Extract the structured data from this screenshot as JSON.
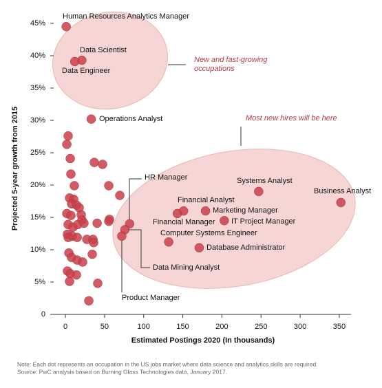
{
  "chart_data": {
    "type": "scatter",
    "x_label": "Estimated Postings 2020 (In thousands)",
    "y_label": "Projected 5-year growth from 2015",
    "annotations": [
      "New and fast-growing",
      "occupations",
      "Most new hires will be here"
    ],
    "notes": [
      "Note: Each dot represents an occupation in the US jobs market where data science and analytics skills are required.",
      "Source: PwC analysis based on Burning Glass Technologies data, January 2017."
    ],
    "color": "#c9404a",
    "xlim": [
      -15,
      365
    ],
    "xticks": [
      0,
      50,
      100,
      150,
      200,
      250,
      300,
      350
    ],
    "ylim": [
      0,
      46
    ],
    "yticks": [
      0,
      {
        "value": 5,
        "label": "5%"
      },
      {
        "value": 10,
        "label": "10%"
      },
      {
        "value": 15,
        "label": "15%"
      },
      {
        "value": 20,
        "label": "20%"
      },
      {
        "value": 25,
        "label": "25%"
      },
      {
        "value": 30,
        "label": "30%"
      },
      {
        "value": 35,
        "label": "35%"
      },
      {
        "value": 40,
        "label": "40%"
      },
      {
        "value": 45,
        "label": "45%"
      }
    ],
    "x": [
      1,
      21,
      12,
      33,
      247,
      352,
      151,
      143,
      179,
      203,
      132,
      171,
      82,
      76,
      72,
      3.5,
      1.8,
      6.2,
      7.0,
      11.4,
      5.3,
      10.6,
      7.9,
      14.1,
      17.6,
      20.2,
      21.1,
      1.8,
      7.0,
      3.5,
      9.7,
      15.8,
      23.7,
      2.6,
      8.8,
      15.0,
      3.5,
      4.4,
      7.9,
      15.0,
      22.0,
      2.6,
      6.2,
      14.1,
      5.3,
      36.9,
      47.5,
      55.4,
      69.5,
      56.3,
      55.4,
      40.5,
      27.3,
      35.2,
      36.1,
      34.3,
      41.3,
      29.9
    ],
    "y": [
      44.5,
      39.3,
      39.1,
      30.2,
      19.0,
      17.3,
      16.0,
      15.6,
      16.0,
      14.5,
      11.2,
      10.3,
      14.0,
      13.1,
      12.1,
      27.6,
      26.3,
      24.1,
      21.7,
      19.9,
      18.0,
      17.8,
      17.1,
      16.9,
      16.5,
      15.4,
      14.6,
      15.6,
      15.3,
      13.9,
      13.5,
      13.9,
      14.1,
      12.4,
      12.1,
      11.9,
      11.9,
      9.5,
      8.8,
      8.4,
      8.1,
      6.7,
      6.3,
      6.1,
      5.1,
      23.5,
      23.2,
      19.9,
      18.4,
      14.7,
      14.4,
      14.1,
      11.6,
      11.6,
      11.1,
      9.3,
      4.8,
      2.1
    ],
    "point_labels": [
      "Human Resources Analytics Manager",
      "Data Scientist",
      "Data Engineer",
      "Operations Analyst",
      "Systems Analyst",
      "Business Analyst",
      "Financial Analyst",
      "Financial Manager",
      "Marketing Manager",
      "IT Project Manager",
      "Computer Systems Engineer",
      "Database Administrator",
      "HR Manager",
      "Data Mining Analyst",
      "Product Manager",
      null,
      null,
      null,
      null,
      null,
      null,
      null,
      null,
      null,
      null,
      null,
      null,
      null,
      null,
      null,
      null,
      null,
      null,
      null,
      null,
      null,
      null,
      null,
      null,
      null,
      null,
      null,
      null,
      null,
      null,
      null,
      null,
      null,
      null,
      null,
      null,
      null,
      null,
      null,
      null,
      null,
      null,
      null
    ]
  }
}
